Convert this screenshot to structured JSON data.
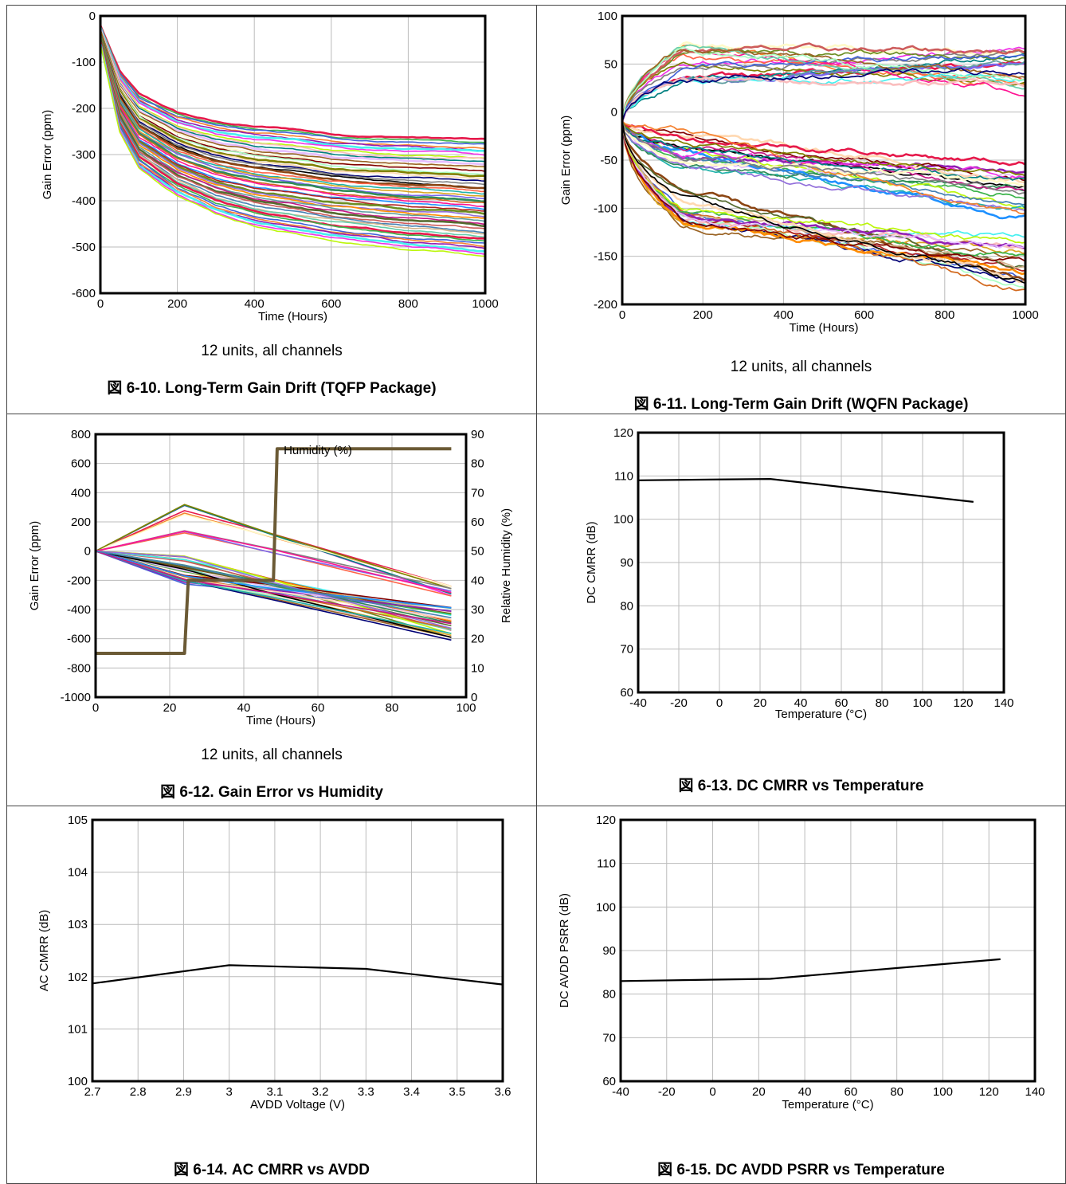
{
  "chart_data": [
    {
      "id": "fig10",
      "type": "line",
      "caption": "図 6-10. Long-Term Gain Drift (TQFP Package)",
      "note": "12 units, all channels",
      "xlabel": "Time (Hours)",
      "ylabel": "Gain Error (ppm)",
      "xlim": [
        0,
        1000
      ],
      "ylim": [
        -600,
        0
      ],
      "xticks": [
        0,
        200,
        400,
        600,
        800,
        1000
      ],
      "yticks": [
        -600,
        -500,
        -400,
        -300,
        -200,
        -100,
        0
      ],
      "grid": true,
      "series_count": 48,
      "series_envelope": {
        "x": [
          0,
          50,
          100,
          200,
          300,
          400,
          500,
          600,
          700,
          800,
          900,
          1000
        ],
        "upper": [
          -20,
          -120,
          -170,
          -210,
          -230,
          -240,
          -245,
          -255,
          -260,
          -262,
          -265,
          -268
        ],
        "lower": [
          -60,
          -250,
          -330,
          -390,
          -430,
          -455,
          -470,
          -485,
          -495,
          -505,
          -510,
          -520
        ]
      }
    },
    {
      "id": "fig11",
      "type": "line",
      "caption": "図 6-11. Long-Term Gain Drift (WQFN Package)",
      "note": "12 units, all channels",
      "xlabel": "Time (Hours)",
      "ylabel": "Gain Error (ppm)",
      "xlim": [
        0,
        1000
      ],
      "ylim": [
        -200,
        100
      ],
      "xticks": [
        0,
        200,
        400,
        600,
        800,
        1000
      ],
      "yticks": [
        -200,
        -150,
        -100,
        -50,
        0,
        50,
        100
      ],
      "grid": true,
      "series_count": 60,
      "series_envelope": {
        "x": [
          0,
          100,
          200,
          400,
          600,
          800,
          1000
        ],
        "upper": [
          0,
          60,
          70,
          65,
          70,
          65,
          60
        ],
        "lower": [
          -20,
          -100,
          -120,
          -145,
          -165,
          -180,
          -185
        ]
      }
    },
    {
      "id": "fig12",
      "type": "line",
      "caption": "図 6-12. Gain Error vs Humidity",
      "note": "12 units, all channels",
      "xlabel": "Time (Hours)",
      "ylabel": "Gain Error (ppm)",
      "y2label": "Relative Humidity (%)",
      "xlim": [
        0,
        100
      ],
      "ylim": [
        -1000,
        800
      ],
      "y2lim": [
        0,
        90
      ],
      "xticks": [
        0,
        20,
        40,
        60,
        80,
        100
      ],
      "yticks": [
        -1000,
        -800,
        -600,
        -400,
        -200,
        0,
        200,
        400,
        600,
        800
      ],
      "y2ticks": [
        0,
        10,
        20,
        30,
        40,
        50,
        60,
        70,
        80,
        90
      ],
      "grid": true,
      "humidity_label": "Humidity (%)",
      "humidity": {
        "x": [
          0,
          24,
          25,
          48,
          49,
          96
        ],
        "y": [
          15,
          15,
          40,
          40,
          85,
          85
        ]
      },
      "series_count": 40,
      "series_envelope": {
        "x": [
          0,
          24,
          96
        ],
        "upper": [
          0,
          320,
          -180
        ],
        "lower": [
          0,
          -30,
          -610
        ]
      }
    },
    {
      "id": "fig13",
      "type": "line",
      "caption": "図 6-13. DC CMRR vs Temperature",
      "xlabel": "Temperature (°C)",
      "ylabel": "DC CMRR (dB)",
      "xlim": [
        -40,
        140
      ],
      "ylim": [
        60,
        120
      ],
      "xticks": [
        -40,
        -20,
        0,
        20,
        40,
        60,
        80,
        100,
        120,
        140
      ],
      "yticks": [
        60,
        70,
        80,
        90,
        100,
        110,
        120
      ],
      "grid": true,
      "x": [
        -40,
        25,
        125
      ],
      "y": [
        109,
        109.3,
        104
      ]
    },
    {
      "id": "fig14",
      "type": "line",
      "caption": "図 6-14. AC CMRR vs AVDD",
      "xlabel": "AVDD Voltage (V)",
      "ylabel": "AC CMRR (dB)",
      "xlim": [
        2.7,
        3.6
      ],
      "ylim": [
        100,
        105
      ],
      "xticks": [
        "2.7",
        "2.8",
        "2.9",
        "3",
        "3.1",
        "3.2",
        "3.3",
        "3.4",
        "3.5",
        "3.6"
      ],
      "yticks": [
        100,
        101,
        102,
        103,
        104,
        105
      ],
      "grid": true,
      "x": [
        2.7,
        3.0,
        3.3,
        3.6
      ],
      "y": [
        101.87,
        102.22,
        102.15,
        101.85
      ]
    },
    {
      "id": "fig15",
      "type": "line",
      "caption": "図 6-15. DC AVDD PSRR vs Temperature",
      "xlabel": "Temperature (°C)",
      "ylabel": "DC AVDD PSRR (dB)",
      "xlim": [
        -40,
        140
      ],
      "ylim": [
        60,
        120
      ],
      "xticks": [
        -40,
        -20,
        0,
        20,
        40,
        60,
        80,
        100,
        120,
        140
      ],
      "yticks": [
        60,
        70,
        80,
        90,
        100,
        110,
        120
      ],
      "grid": true,
      "x": [
        -40,
        25,
        125
      ],
      "y": [
        83,
        83.5,
        88
      ]
    }
  ],
  "palette": [
    "#e6194b",
    "#3cb44b",
    "#4363d8",
    "#f58231",
    "#911eb4",
    "#46f0f0",
    "#f032e6",
    "#bcf60c",
    "#fabebe",
    "#008080",
    "#e6beff",
    "#9a6324",
    "#fffac8",
    "#800000",
    "#aaffc3",
    "#808000",
    "#ffd8b1",
    "#000075",
    "#808080",
    "#000000",
    "#8b4513",
    "#ff6347",
    "#20b2aa",
    "#daa520",
    "#7b68ee",
    "#2e8b57",
    "#d2691e",
    "#ff1493",
    "#1e90ff",
    "#b22222",
    "#6b8e23",
    "#9370db",
    "#ff8c00",
    "#5f9ea0",
    "#c71585",
    "#556b2f",
    "#cd5c5c",
    "#4682b4",
    "#d2b48c",
    "#66cdaa"
  ]
}
